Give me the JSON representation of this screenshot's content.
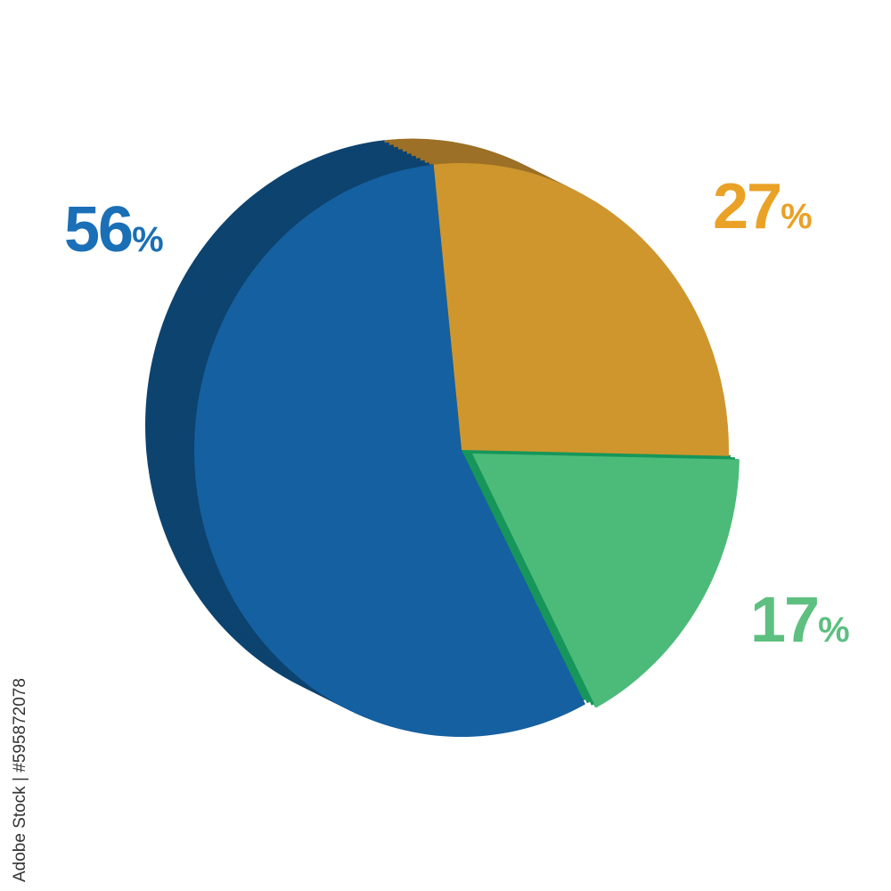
{
  "chart_data": {
    "type": "pie",
    "style": "3d",
    "slices": [
      {
        "label": "27",
        "value": 27,
        "color": "#cf962e",
        "side_color": "#9c7026",
        "label_color": "#e9a126"
      },
      {
        "label": "17",
        "value": 17,
        "color": "#4cbb7a",
        "side_color": "#16965a",
        "label_color": "#5dbf80",
        "exploded": true
      },
      {
        "label": "56",
        "value": 56,
        "color": "#1560a0",
        "side_color": "#0d436f",
        "label_color": "#1a6fb6"
      }
    ],
    "percent_sign": "%",
    "legend": "none"
  },
  "watermark": "Adobe Stock | #595872078"
}
